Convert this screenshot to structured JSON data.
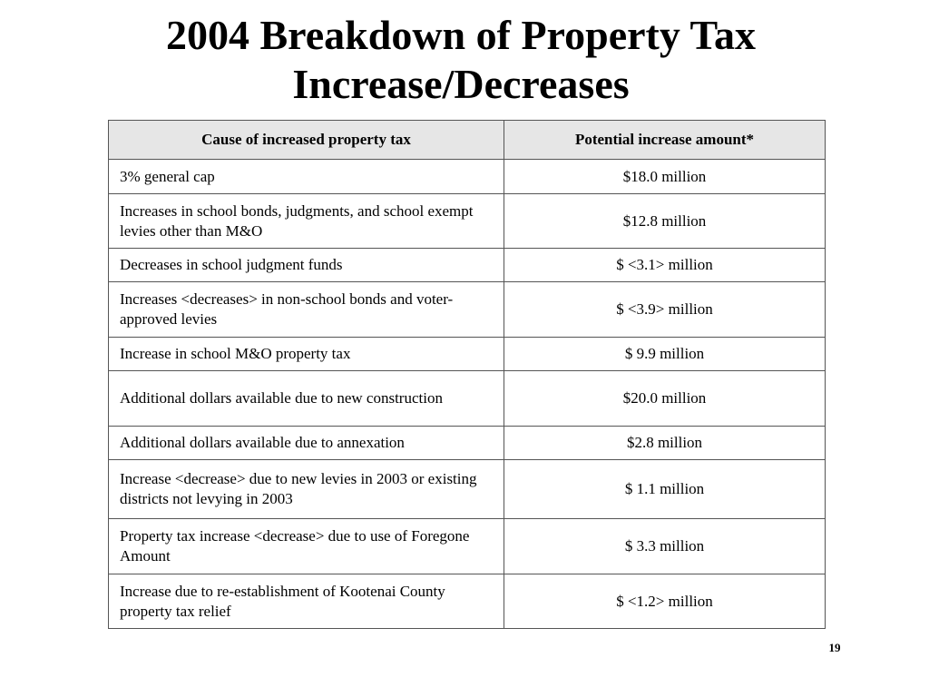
{
  "slide": {
    "title_line1": "2004 Breakdown of Property Tax",
    "title_line2": "Increase/Decreases",
    "page_number": "19"
  },
  "table": {
    "headers": {
      "cause": "Cause of increased property tax",
      "amount": "Potential increase amount*"
    },
    "rows": [
      {
        "cause": "3% general cap",
        "amount": "$18.0 million"
      },
      {
        "cause": "Increases in school bonds, judgments, and school exempt levies other than M&O",
        "amount": "$12.8 million"
      },
      {
        "cause": "Decreases in school judgment funds",
        "amount": "$ <3.1> million"
      },
      {
        "cause": "Increases <decreases> in non-school bonds and voter-approved levies",
        "amount": "$ <3.9> million"
      },
      {
        "cause": "Increase in school M&O property tax",
        "amount": "$ 9.9 million"
      },
      {
        "cause": "Additional dollars available due to new construction",
        "amount": "$20.0 million"
      },
      {
        "cause": "Additional dollars available due to annexation",
        "amount": "$2.8 million"
      },
      {
        "cause": "Increase <decrease> due to new levies in 2003 or existing districts not levying in 2003",
        "amount": "$ 1.1 million"
      },
      {
        "cause": "Property tax increase <decrease> due to use of Foregone Amount",
        "amount": "$ 3.3 million"
      },
      {
        "cause": "Increase due to re-establishment of Kootenai County property tax relief",
        "amount": "$ <1.2> million"
      }
    ]
  }
}
